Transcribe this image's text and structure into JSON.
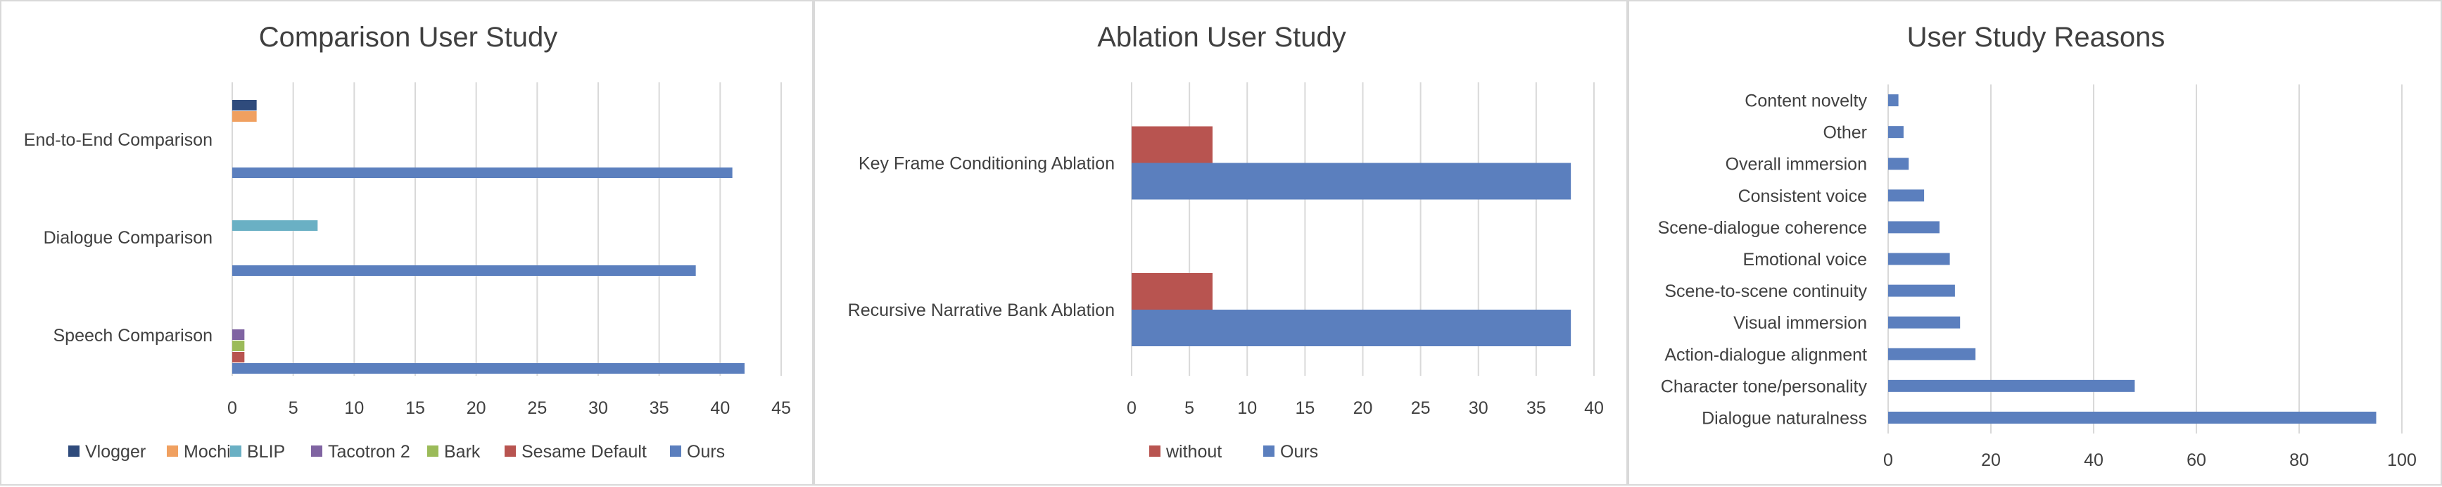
{
  "colors": {
    "vlogger": "#2f4b7c",
    "mochi": "#f0a060",
    "blip": "#6ab0c4",
    "tacotron": "#8064a2",
    "bark": "#9bbb59",
    "sesame": "#b85450",
    "ours": "#5b7fbe",
    "grid": "#d9d9d9",
    "border": "#d9d9d9"
  },
  "chart_data": [
    {
      "type": "bar",
      "orientation": "horizontal",
      "title": "Comparison User Study",
      "categories": [
        "Speech Comparison",
        "Dialogue Comparison",
        "End-to-End Comparison"
      ],
      "series": [
        {
          "name": "Ours",
          "values": [
            42,
            38,
            41
          ]
        },
        {
          "name": "Sesame Default",
          "values": [
            1,
            0,
            0
          ]
        },
        {
          "name": "Bark",
          "values": [
            1,
            0,
            0
          ]
        },
        {
          "name": "Tacotron 2",
          "values": [
            1,
            0,
            0
          ]
        },
        {
          "name": "BLIP",
          "values": [
            0,
            7,
            0
          ]
        },
        {
          "name": "Mochi",
          "values": [
            0,
            0,
            2
          ]
        },
        {
          "name": "Vlogger",
          "values": [
            0,
            0,
            2
          ]
        }
      ],
      "legend_order": [
        "Vlogger",
        "Mochi",
        "BLIP",
        "Tacotron 2",
        "Bark",
        "Sesame Default",
        "Ours"
      ],
      "xlim": [
        0,
        45
      ],
      "xticks": [
        "0",
        "5",
        "10",
        "15",
        "20",
        "25",
        "30",
        "35",
        "40",
        "45"
      ],
      "grid": "vertical",
      "legend": "bottom"
    },
    {
      "type": "bar",
      "orientation": "horizontal",
      "title": "Ablation User Study",
      "categories": [
        "Recursive Narrative Bank Ablation",
        "Key Frame Conditioning Ablation"
      ],
      "series": [
        {
          "name": "Ours",
          "values": [
            38,
            38
          ]
        },
        {
          "name": "without",
          "values": [
            7,
            7
          ]
        }
      ],
      "legend_order": [
        "without",
        "Ours"
      ],
      "xlim": [
        0,
        40
      ],
      "xticks": [
        "0",
        "5",
        "10",
        "15",
        "20",
        "25",
        "30",
        "35",
        "40"
      ],
      "grid": "vertical",
      "legend": "bottom"
    },
    {
      "type": "bar",
      "orientation": "horizontal",
      "title": "User Study Reasons",
      "categories": [
        "Dialogue naturalness",
        "Character tone/personality",
        "Action-dialogue alignment",
        "Visual immersion",
        "Scene-to-scene continuity",
        "Emotional voice",
        "Scene-dialogue coherence",
        "Consistent voice",
        "Overall immersion",
        "Other",
        "Content novelty"
      ],
      "series": [
        {
          "values": [
            95,
            48,
            17,
            14,
            13,
            12,
            10,
            7,
            4,
            3,
            2
          ]
        }
      ],
      "xlim": [
        0,
        100
      ],
      "xticks": [
        "0",
        "20",
        "40",
        "60",
        "80",
        "100"
      ],
      "grid": "vertical",
      "legend": "none"
    }
  ]
}
